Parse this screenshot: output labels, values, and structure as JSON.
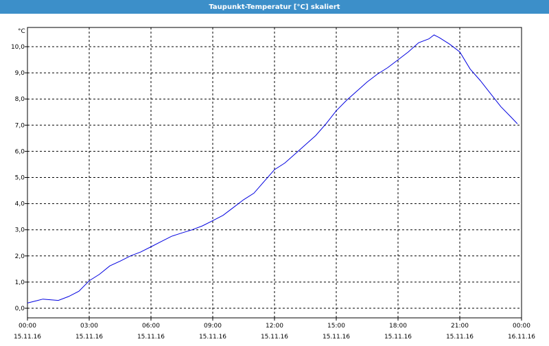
{
  "window": {
    "title": "Taupunkt-Temperatur [°C] skaliert"
  },
  "colors": {
    "title_bar": "#3c8fc9",
    "line": "#0000e0",
    "grid": "#000000"
  },
  "chart_data": {
    "type": "line",
    "ylabel": "°C",
    "ylim": [
      0,
      11
    ],
    "yticks": [
      {
        "value": 0,
        "label": "0,0"
      },
      {
        "value": 1,
        "label": "1,0"
      },
      {
        "value": 2,
        "label": "2,0"
      },
      {
        "value": 3,
        "label": "3,0"
      },
      {
        "value": 4,
        "label": "4,0"
      },
      {
        "value": 5,
        "label": "5,0"
      },
      {
        "value": 6,
        "label": "6,0"
      },
      {
        "value": 7,
        "label": "7,0"
      },
      {
        "value": 8,
        "label": "8,0"
      },
      {
        "value": 9,
        "label": "9,0"
      },
      {
        "value": 10,
        "label": "10,0"
      }
    ],
    "xlim": [
      0,
      24
    ],
    "xticks": [
      {
        "value": 0,
        "time": "00:00",
        "date": "15.11.16"
      },
      {
        "value": 3,
        "time": "03:00",
        "date": "15.11.16"
      },
      {
        "value": 6,
        "time": "06:00",
        "date": "15.11.16"
      },
      {
        "value": 9,
        "time": "09:00",
        "date": "15.11.16"
      },
      {
        "value": 12,
        "time": "12:00",
        "date": "15.11.16"
      },
      {
        "value": 15,
        "time": "15:00",
        "date": "15.11.16"
      },
      {
        "value": 18,
        "time": "18:00",
        "date": "15.11.16"
      },
      {
        "value": 21,
        "time": "21:00",
        "date": "15.11.16"
      },
      {
        "value": 24,
        "time": "00:00",
        "date": "16.11.16"
      }
    ],
    "grid": true,
    "series": [
      {
        "points": [
          [
            0.0,
            0.2
          ],
          [
            0.5,
            0.3
          ],
          [
            0.75,
            0.35
          ],
          [
            1.0,
            0.33
          ],
          [
            1.5,
            0.3
          ],
          [
            2.0,
            0.45
          ],
          [
            2.5,
            0.65
          ],
          [
            3.0,
            1.05
          ],
          [
            3.5,
            1.3
          ],
          [
            4.0,
            1.62
          ],
          [
            4.5,
            1.8
          ],
          [
            5.0,
            2.0
          ],
          [
            5.5,
            2.15
          ],
          [
            6.0,
            2.35
          ],
          [
            6.5,
            2.55
          ],
          [
            7.0,
            2.75
          ],
          [
            7.5,
            2.88
          ],
          [
            8.0,
            3.0
          ],
          [
            8.5,
            3.15
          ],
          [
            9.0,
            3.35
          ],
          [
            9.5,
            3.55
          ],
          [
            10.0,
            3.85
          ],
          [
            10.5,
            4.15
          ],
          [
            11.0,
            4.4
          ],
          [
            11.5,
            4.85
          ],
          [
            12.0,
            5.3
          ],
          [
            12.5,
            5.55
          ],
          [
            13.0,
            5.9
          ],
          [
            13.5,
            6.25
          ],
          [
            14.0,
            6.6
          ],
          [
            14.5,
            7.05
          ],
          [
            15.0,
            7.55
          ],
          [
            15.5,
            7.95
          ],
          [
            16.0,
            8.3
          ],
          [
            16.5,
            8.65
          ],
          [
            17.0,
            8.95
          ],
          [
            17.5,
            9.2
          ],
          [
            18.0,
            9.5
          ],
          [
            18.5,
            9.8
          ],
          [
            19.0,
            10.15
          ],
          [
            19.5,
            10.3
          ],
          [
            19.75,
            10.45
          ],
          [
            20.0,
            10.35
          ],
          [
            20.5,
            10.1
          ],
          [
            21.0,
            9.8
          ],
          [
            21.5,
            9.15
          ],
          [
            22.0,
            8.7
          ],
          [
            22.5,
            8.2
          ],
          [
            23.0,
            7.7
          ],
          [
            23.5,
            7.3
          ],
          [
            23.8,
            7.05
          ]
        ]
      }
    ]
  }
}
